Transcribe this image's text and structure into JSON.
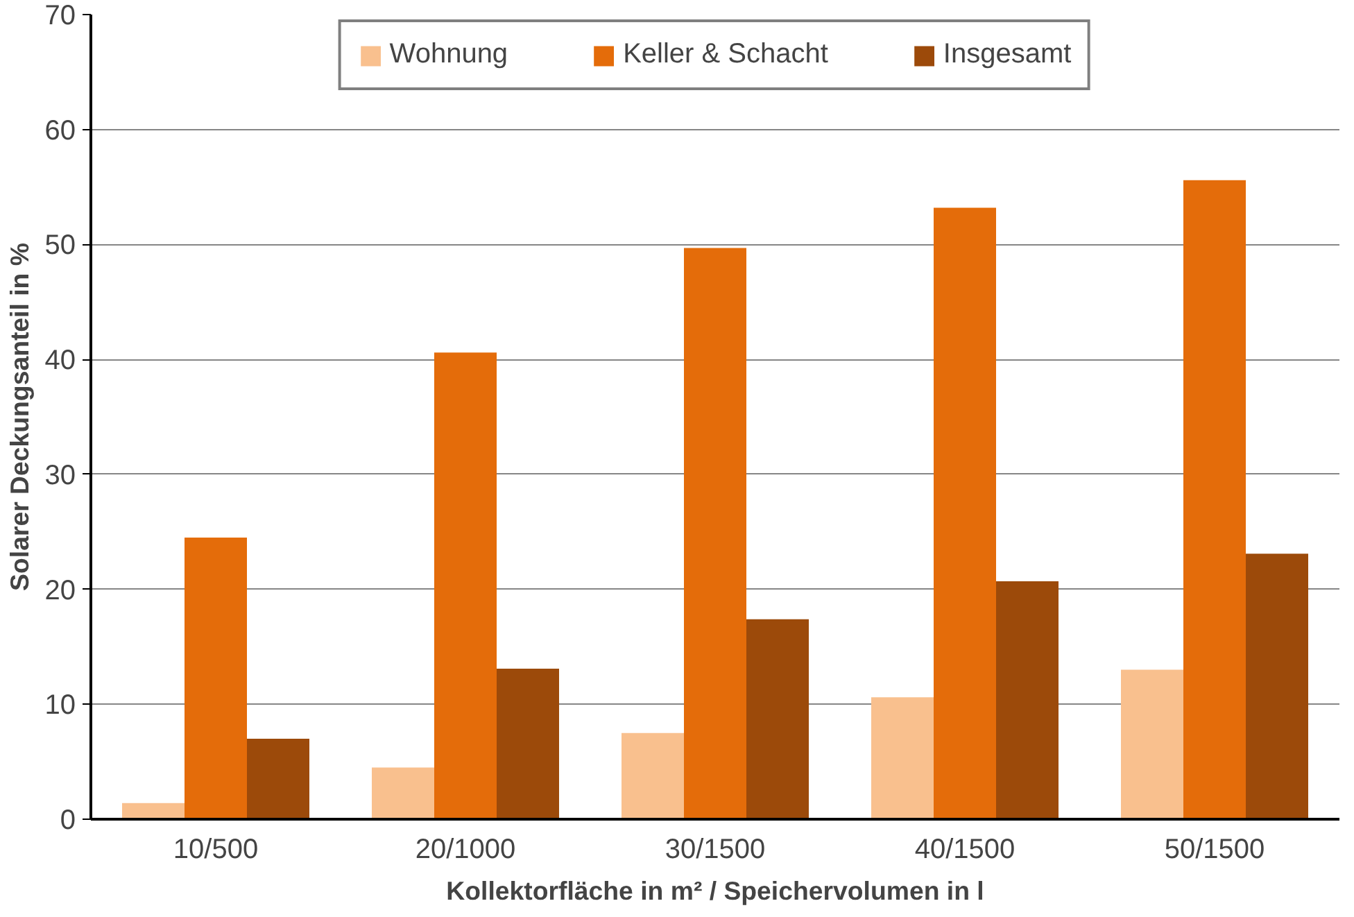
{
  "chart_data": {
    "type": "bar",
    "xlabel": "Kollektorfläche in m² / Speichervolumen in l",
    "ylabel": "Solarer Deckungsanteil in %",
    "categories": [
      "10/500",
      "20/1000",
      "30/1500",
      "40/1500",
      "50/1500"
    ],
    "series": [
      {
        "name": "Wohnung",
        "color": "#f9c08e",
        "values": [
          1.4,
          4.5,
          7.5,
          10.6,
          13.0
        ]
      },
      {
        "name": "Keller & Schacht",
        "color": "#e46c0a",
        "values": [
          24.5,
          40.6,
          49.7,
          53.2,
          55.6
        ]
      },
      {
        "name": "Insgesamt",
        "color": "#9c4a0a",
        "values": [
          7.0,
          13.1,
          17.4,
          20.7,
          23.1
        ]
      }
    ],
    "ylim": [
      0,
      70
    ],
    "yticks": [
      0,
      10,
      20,
      30,
      40,
      50,
      60,
      70
    ],
    "grid": "y",
    "legend": "top"
  }
}
